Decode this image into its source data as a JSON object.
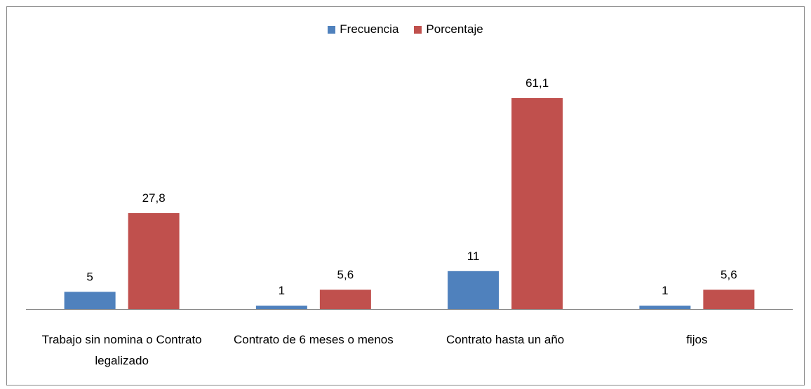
{
  "chart_data": {
    "type": "bar",
    "categories": [
      "Trabajo sin nomina o Contrato legalizado",
      "Contrato de 6 meses o menos",
      "Contrato hasta un año",
      "fijos"
    ],
    "series": [
      {
        "name": "Frecuencia",
        "color": "#4f81bd",
        "values": [
          5,
          1,
          11,
          1
        ]
      },
      {
        "name": "Porcentaje",
        "color": "#c0504d",
        "values": [
          27.8,
          5.6,
          61.1,
          5.6
        ],
        "value_labels": [
          "27,8",
          "5,6",
          "61,1",
          "5,6"
        ]
      }
    ]
  }
}
